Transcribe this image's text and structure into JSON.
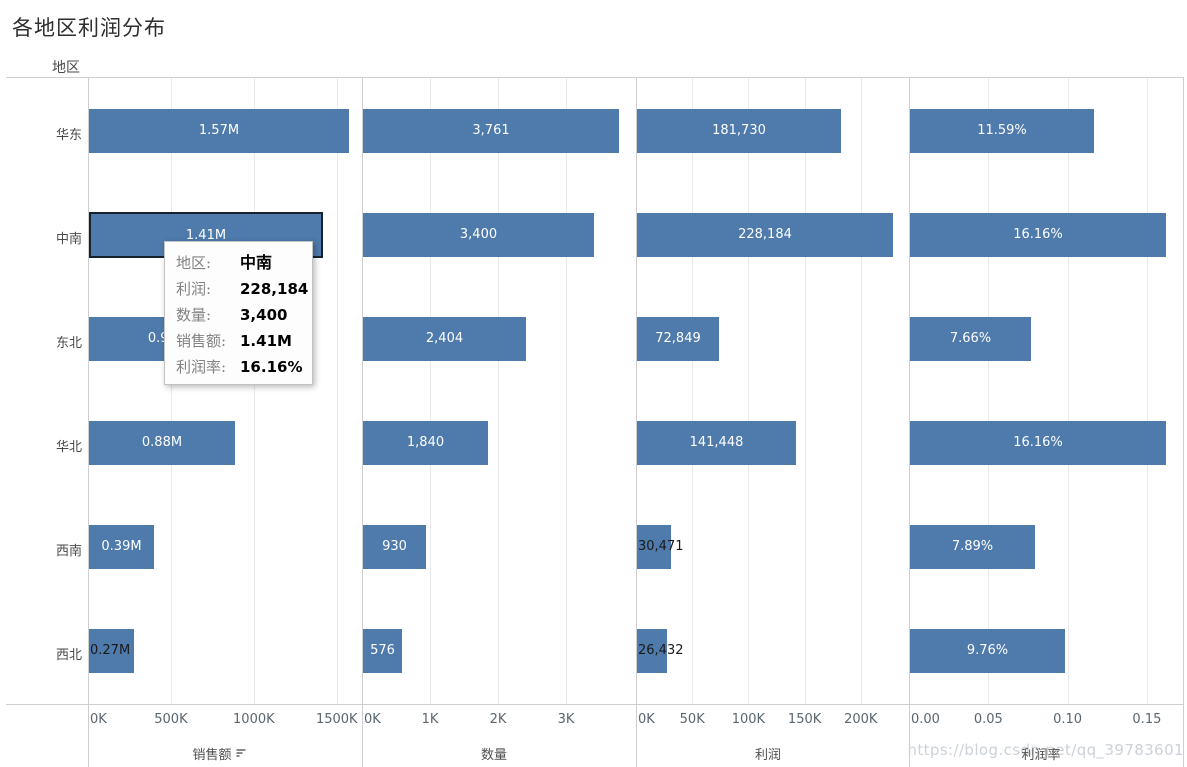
{
  "title": "各地区利润分布",
  "row_header": "地区",
  "watermark": "https://blog.csdn.net/qq_39783601",
  "colors": {
    "bar": "#4e7aac",
    "highlight_border": "#16232e",
    "label_light": "#ffffff",
    "label_dark": "#1a1a1a",
    "gridline": "#eaeaea",
    "border": "#cfcfcf"
  },
  "chart_data": {
    "type": "bar",
    "orientation": "horizontal",
    "title": "各地区利润分布",
    "row_dimension": "地区",
    "categories": [
      "华东",
      "中南",
      "东北",
      "华北",
      "西南",
      "西北"
    ],
    "grid": true,
    "panels": [
      {
        "axis_title": "销售额",
        "has_sort_icon": true,
        "tick_labels": [
          "0K",
          "500K",
          "1000K",
          "1500K"
        ],
        "tick_values": [
          0,
          500,
          1000,
          1500
        ],
        "axis_max": 1640,
        "values": [
          1570,
          1410,
          950,
          880,
          390,
          270
        ],
        "value_labels": [
          "1.57M",
          "1.41M",
          "0.95M",
          "0.88M",
          "0.39M",
          "0.27M"
        ],
        "label_modes": [
          "in",
          "in",
          "in",
          "in",
          "in",
          "out"
        ]
      },
      {
        "axis_title": "数量",
        "has_sort_icon": false,
        "tick_labels": [
          "0K",
          "1K",
          "2K",
          "3K"
        ],
        "tick_values": [
          0,
          1000,
          2000,
          3000
        ],
        "axis_max": 4000,
        "values": [
          3761,
          3400,
          2404,
          1840,
          930,
          576
        ],
        "value_labels": [
          "3,761",
          "3,400",
          "2,404",
          "1,840",
          "930",
          "576"
        ],
        "label_modes": [
          "in",
          "in",
          "in",
          "in",
          "in",
          "in"
        ]
      },
      {
        "axis_title": "利润",
        "has_sort_icon": false,
        "tick_labels": [
          "0K",
          "50K",
          "100K",
          "150K",
          "200K"
        ],
        "tick_values": [
          0,
          50000,
          100000,
          150000,
          200000
        ],
        "axis_max": 242000,
        "values": [
          181730,
          228184,
          72849,
          141448,
          30471,
          26432
        ],
        "value_labels": [
          "181,730",
          "228,184",
          "72,849",
          "141,448",
          "30,471",
          "26,432"
        ],
        "label_modes": [
          "in",
          "in",
          "in",
          "in",
          "out",
          "out"
        ]
      },
      {
        "axis_title": "利润率",
        "has_sort_icon": false,
        "tick_labels": [
          "0.00",
          "0.05",
          "0.10",
          "0.15"
        ],
        "tick_values": [
          0,
          0.05,
          0.1,
          0.15
        ],
        "axis_max": 0.1715,
        "values": [
          0.1159,
          0.1616,
          0.0766,
          0.1616,
          0.0789,
          0.0976
        ],
        "value_labels": [
          "11.59%",
          "16.16%",
          "7.66%",
          "16.16%",
          "7.89%",
          "9.76%"
        ],
        "label_modes": [
          "in",
          "in",
          "in",
          "in",
          "in",
          "in"
        ]
      }
    ],
    "highlight": {
      "panel_index": 0,
      "row_index": 1
    }
  },
  "tooltip": {
    "rows": [
      {
        "label": "地区:",
        "value": "中南",
        "emph": true
      },
      {
        "label": "利润:",
        "value": "228,184",
        "emph": false
      },
      {
        "label": "数量:",
        "value": "3,400",
        "emph": false
      },
      {
        "label": "销售额:",
        "value": "1.41M",
        "emph": false
      },
      {
        "label": "利润率:",
        "value": "16.16%",
        "emph": false
      }
    ]
  }
}
